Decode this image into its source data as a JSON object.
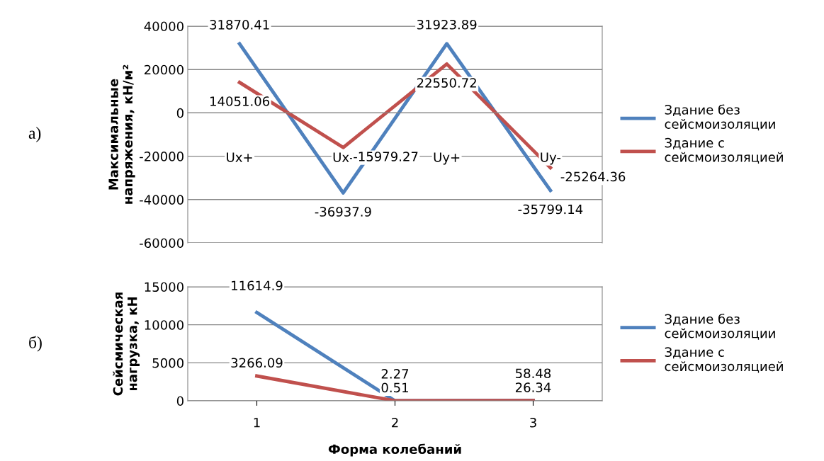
{
  "chart_data": [
    {
      "type": "line",
      "ylabel": "Максимальные\nнапряжения, кН/м²",
      "categories": [
        "Ux+",
        "Ux-",
        "Uy+",
        "Uy-"
      ],
      "series": [
        {
          "name": "Здание без сейсмоизоляции",
          "color": "#4f81bd",
          "values": [
            31870.41,
            -36937.9,
            31923.89,
            -35799.14
          ]
        },
        {
          "name": "Здание с сейсмоизоляцией",
          "color": "#c0504d",
          "values": [
            14051.06,
            -15979.27,
            22550.72,
            -25264.36
          ]
        }
      ],
      "ylim": [
        -60000,
        40000
      ],
      "yticks": [
        -60000,
        -40000,
        -20000,
        0,
        20000,
        40000
      ],
      "grid": "y",
      "legend": "right",
      "data_labels": true,
      "annotations": [
        "а)"
      ]
    },
    {
      "type": "line",
      "ylabel": "Сейсмическая\nнагрузка, кН",
      "xlabel": "Форма колебаний",
      "categories": [
        "1",
        "2",
        "3"
      ],
      "series": [
        {
          "name": "Здание без сейсмоизоляции",
          "color": "#4f81bd",
          "values": [
            11614.9,
            2.27,
            58.48
          ]
        },
        {
          "name": "Здание с сейсмоизоляцией",
          "color": "#c0504d",
          "values": [
            3266.09,
            0.51,
            26.34
          ]
        }
      ],
      "ylim": [
        0,
        15000
      ],
      "yticks": [
        0,
        5000,
        10000,
        15000
      ],
      "grid": "y",
      "legend": "right",
      "data_labels": true,
      "annotations": [
        "б)"
      ]
    }
  ]
}
